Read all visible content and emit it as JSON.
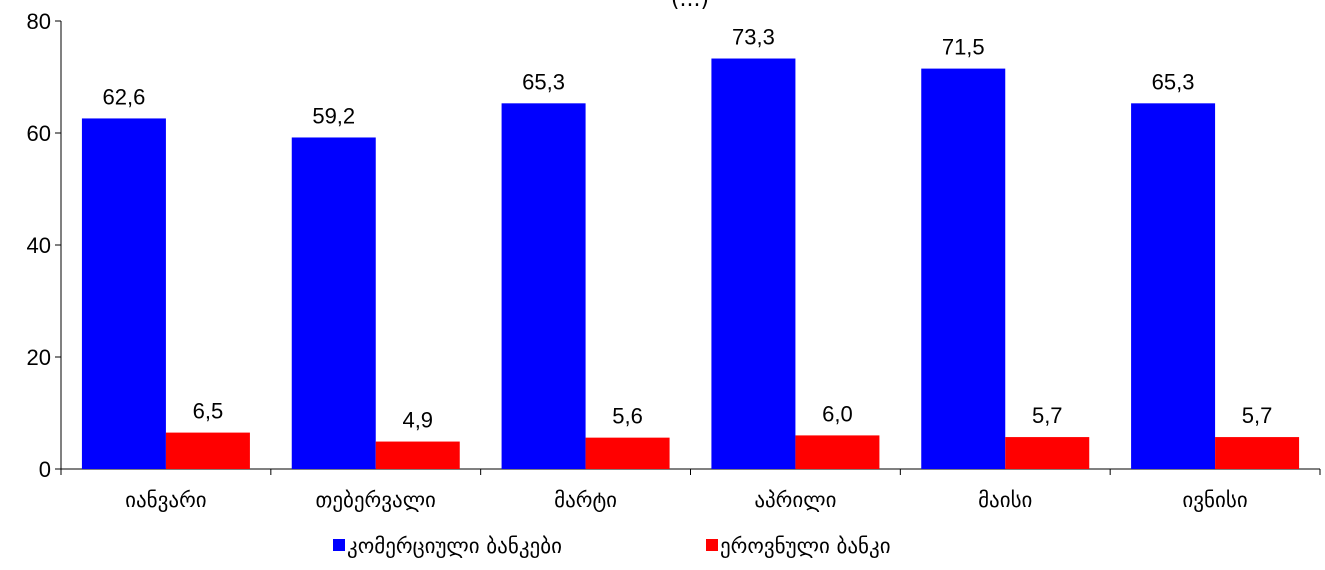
{
  "chart_data": {
    "type": "bar",
    "title": "(...)",
    "categories": [
      "იანვარი",
      "თებერვალი",
      "მარტი",
      "აპრილი",
      "მაისი",
      "ივნისი"
    ],
    "series": [
      {
        "name": "კომერციული ბანკები",
        "color": "#0000FF",
        "values": [
          62.6,
          59.2,
          65.3,
          73.3,
          71.5,
          65.3
        ],
        "labels": [
          "62,6",
          "59,2",
          "65,3",
          "73,3",
          "71,5",
          "65,3"
        ]
      },
      {
        "name": "ეროვნული ბანკი",
        "color": "#FF0000",
        "values": [
          6.5,
          4.9,
          5.6,
          6.0,
          5.7,
          5.7
        ],
        "labels": [
          "6,5",
          "4,9",
          "5,6",
          "6,0",
          "5,7",
          "5,7"
        ]
      }
    ],
    "ylim": [
      0,
      80
    ],
    "yticks": [
      0,
      20,
      40,
      60,
      80
    ],
    "xlabel": "",
    "ylabel": "",
    "grid": false,
    "legend_position": "bottom"
  }
}
